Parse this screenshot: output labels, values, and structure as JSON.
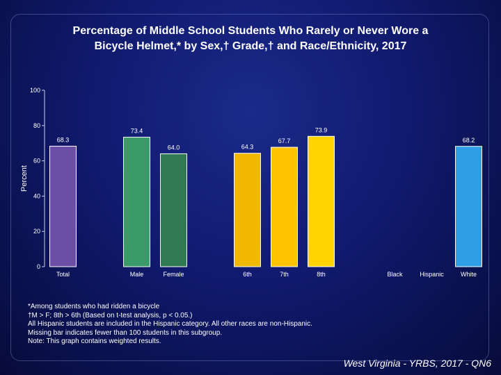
{
  "title_line1": "Percentage of Middle School Students Who Rarely or Never Wore a",
  "title_line2": "Bicycle Helmet,* by Sex,† Grade,† and Race/Ethnicity, 2017",
  "footnotes": [
    "*Among students who had ridden a bicycle",
    "†M > F; 8th > 6th (Based on t-test analysis, p < 0.05.)",
    "All Hispanic students are included in the Hispanic category.  All other races are non-Hispanic.",
    "Missing bar indicates fewer than 100 students in this subgroup.",
    "Note: This graph contains weighted results."
  ],
  "source": "West Virginia - YRBS, 2017 - QN6",
  "chart_data": {
    "type": "bar",
    "ylabel": "Percent",
    "ylim": [
      0,
      100
    ],
    "yticks": [
      "0",
      "20",
      "40",
      "60",
      "80",
      "100"
    ],
    "grid": false,
    "categories": [
      "Total",
      "Male",
      "Female",
      "6th",
      "7th",
      "8th",
      "Black",
      "Hispanic",
      "White"
    ],
    "values": [
      68.3,
      73.4,
      64.0,
      64.3,
      67.7,
      73.9,
      null,
      null,
      68.2
    ],
    "value_labels": [
      "68.3",
      "73.4",
      "64.0",
      "64.3",
      "67.7",
      "73.9",
      "",
      "",
      "68.2"
    ],
    "colors": [
      "#6b4ea6",
      "#3a9a6a",
      "#2f7a52",
      "#f0b800",
      "#ffc400",
      "#ffd400",
      "#3fa7e6",
      "#3fa7e6",
      "#2e9fe6"
    ]
  }
}
